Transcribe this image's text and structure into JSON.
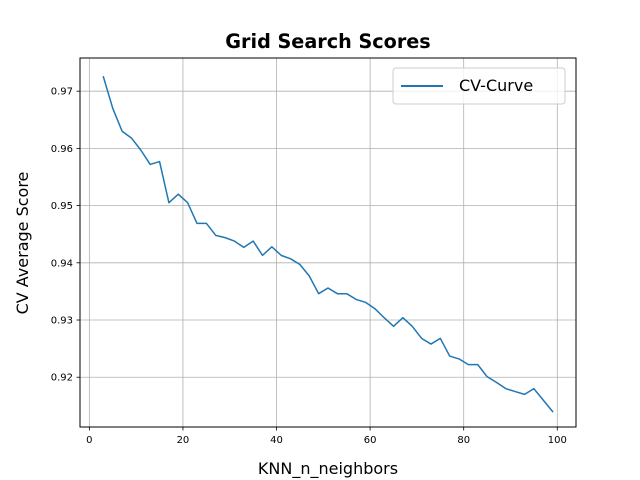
{
  "chart_data": {
    "type": "line",
    "title": "Grid Search Scores",
    "xlabel": "KNN_n_neighbors",
    "ylabel": "CV Average Score",
    "xlim": [
      -2,
      104
    ],
    "ylim": [
      0.9113,
      0.9758
    ],
    "xticks": [
      0,
      20,
      40,
      60,
      80,
      100
    ],
    "xtick_labels": [
      "0",
      "20",
      "40",
      "60",
      "80",
      "100"
    ],
    "yticks": [
      0.92,
      0.93,
      0.94,
      0.95,
      0.96,
      0.97
    ],
    "ytick_labels": [
      "0.92",
      "0.93",
      "0.94",
      "0.95",
      "0.96",
      "0.97"
    ],
    "grid": true,
    "legend_position": "upper right",
    "color": "#1f77b4",
    "series": [
      {
        "name": "CV-Curve",
        "x": [
          3,
          5,
          7,
          9,
          11,
          13,
          15,
          17,
          19,
          21,
          23,
          25,
          27,
          29,
          31,
          33,
          35,
          37,
          39,
          41,
          43,
          45,
          47,
          49,
          51,
          53,
          55,
          57,
          59,
          61,
          63,
          65,
          67,
          69,
          71,
          73,
          75,
          77,
          79,
          81,
          83,
          85,
          87,
          89,
          91,
          93,
          95,
          97,
          99
        ],
        "y": [
          0.9725,
          0.967,
          0.963,
          0.9618,
          0.9597,
          0.9572,
          0.9577,
          0.9505,
          0.952,
          0.9505,
          0.9469,
          0.9469,
          0.9448,
          0.9444,
          0.9438,
          0.9427,
          0.9438,
          0.9413,
          0.9428,
          0.9413,
          0.9407,
          0.9397,
          0.9377,
          0.9346,
          0.9356,
          0.9346,
          0.9346,
          0.9336,
          0.9331,
          0.932,
          0.9304,
          0.9289,
          0.9304,
          0.9289,
          0.9268,
          0.9258,
          0.9268,
          0.9237,
          0.9232,
          0.9222,
          0.9222,
          0.9201,
          0.9191,
          0.918,
          0.9175,
          0.917,
          0.918,
          0.916,
          0.914
        ]
      }
    ]
  }
}
